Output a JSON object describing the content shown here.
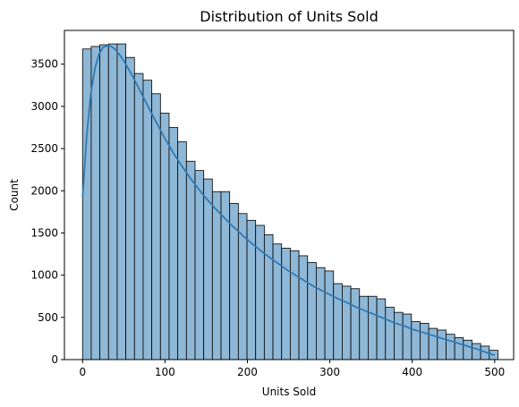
{
  "chart_data": {
    "type": "bar",
    "title": "Distribution of Units Sold",
    "xlabel": "Units Sold",
    "ylabel": "Count",
    "xlim": [
      -22,
      523
    ],
    "ylim": [
      0,
      3900
    ],
    "xticks": [
      0,
      100,
      200,
      300,
      400,
      500
    ],
    "yticks": [
      0,
      500,
      1000,
      1500,
      2000,
      2500,
      3000,
      3500
    ],
    "bin_width": 10.5,
    "bins_start": 0,
    "values": [
      3680,
      3710,
      3730,
      3740,
      3740,
      3580,
      3390,
      3310,
      3150,
      2920,
      2750,
      2580,
      2350,
      2240,
      2140,
      1990,
      1990,
      1850,
      1730,
      1650,
      1590,
      1480,
      1370,
      1320,
      1290,
      1230,
      1150,
      1090,
      1050,
      900,
      870,
      840,
      750,
      750,
      720,
      620,
      560,
      540,
      450,
      430,
      370,
      350,
      300,
      260,
      230,
      190,
      160,
      110
    ],
    "kde": {
      "x": [
        0,
        5,
        10,
        15,
        20,
        25,
        30,
        35,
        40,
        45,
        50,
        60,
        70,
        80,
        90,
        100,
        110,
        120,
        130,
        140,
        150,
        160,
        170,
        180,
        190,
        200,
        210,
        220,
        230,
        240,
        250,
        260,
        270,
        280,
        290,
        300,
        310,
        320,
        330,
        340,
        350,
        360,
        370,
        380,
        390,
        400,
        410,
        420,
        430,
        440,
        450,
        460,
        470,
        480,
        490,
        500
      ],
      "y": [
        1920,
        2650,
        3150,
        3450,
        3620,
        3700,
        3720,
        3710,
        3670,
        3610,
        3540,
        3370,
        3180,
        2990,
        2800,
        2620,
        2450,
        2300,
        2160,
        2030,
        1910,
        1800,
        1700,
        1600,
        1510,
        1420,
        1340,
        1260,
        1190,
        1120,
        1050,
        990,
        930,
        870,
        820,
        770,
        720,
        680,
        630,
        590,
        550,
        510,
        470,
        430,
        400,
        360,
        330,
        300,
        270,
        240,
        210,
        180,
        150,
        120,
        85,
        50
      ]
    },
    "grid": false,
    "legend": "none",
    "colors": {
      "bar_fill": "#8fb7d6",
      "bar_edge": "#000000",
      "kde_line": "#2f7ab5"
    }
  }
}
